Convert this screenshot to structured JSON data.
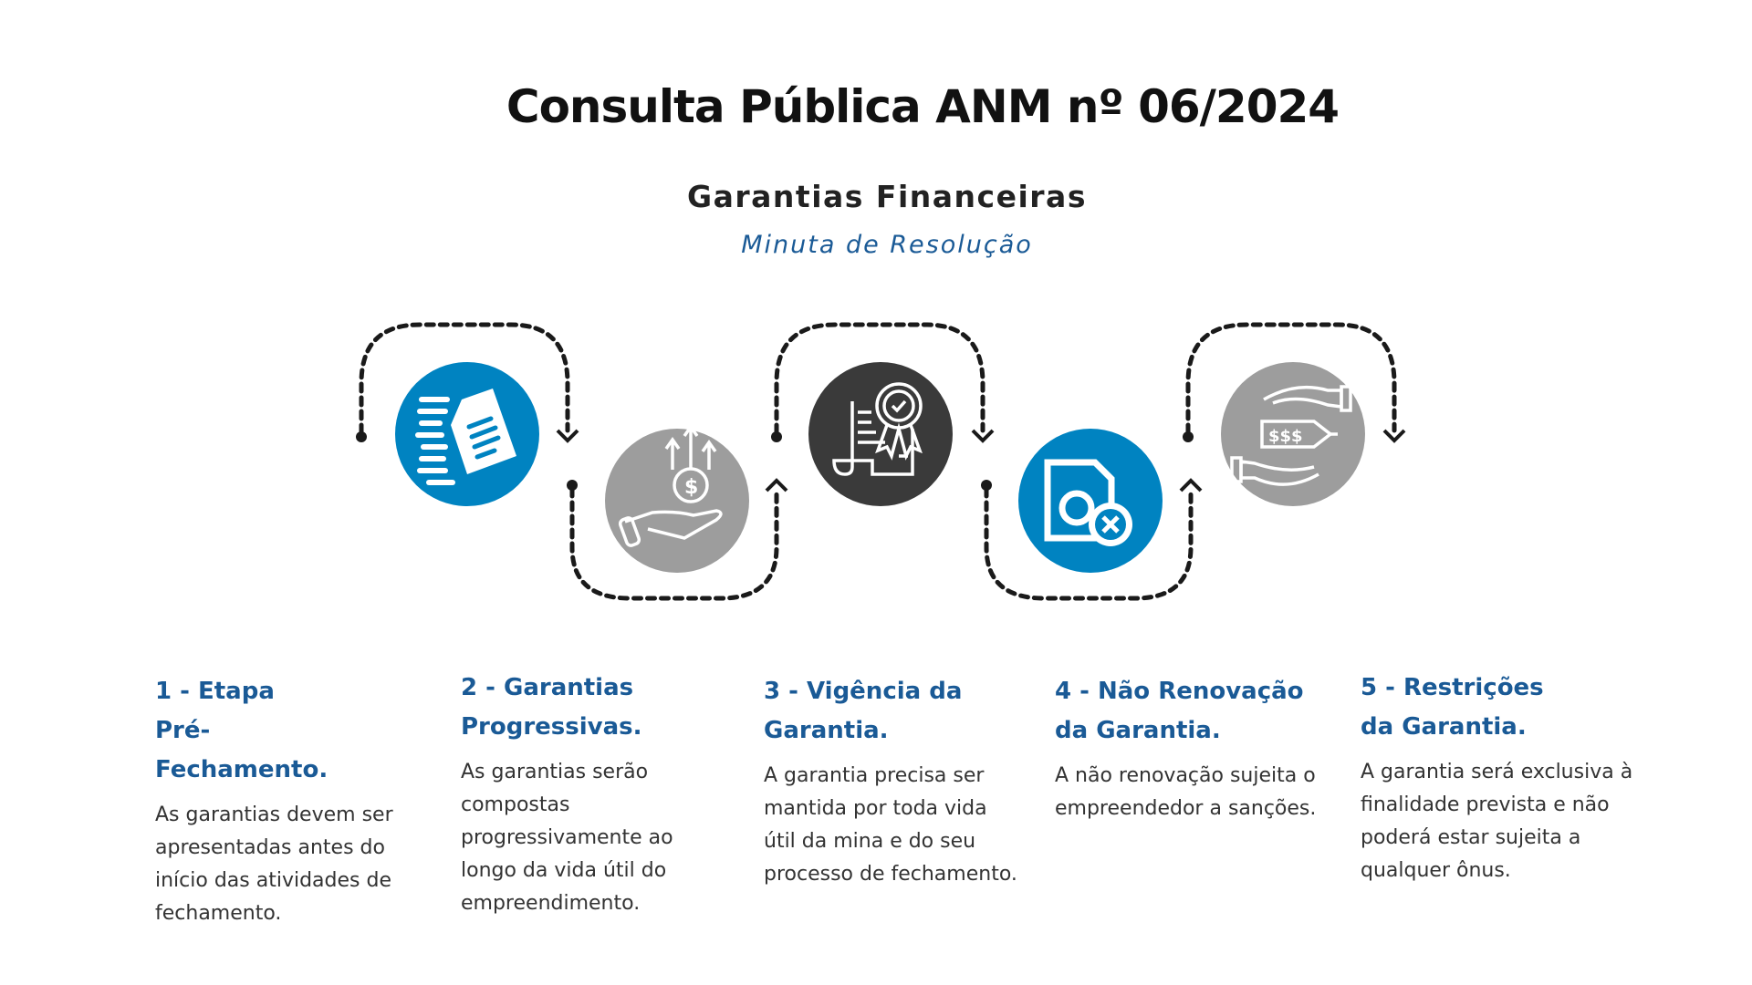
{
  "header": {
    "title": "Consulta Pública ANM nº 06/2024",
    "subtitle": "Garantias Financeiras",
    "caption": "Minuta de Resolução"
  },
  "colors": {
    "blue": "#0083c1",
    "gray": "#9d9d9d",
    "dark": "#3a3a3a",
    "heading": "#1a5a96"
  },
  "steps": [
    {
      "icon": "document-list-icon",
      "color": "blue",
      "heading": "1 - Etapa Pré-Fechamento.",
      "text": "As garantias devem ser apresentadas antes do início das atividades de fechamento."
    },
    {
      "icon": "hand-money-growth-icon",
      "color": "gray",
      "heading": "2 - Garantias Progressivas.",
      "text": "As garantias serão compostas progressivamente ao longo da vida útil do empreendimento."
    },
    {
      "icon": "certificate-badge-icon",
      "color": "dark",
      "heading": "3 - Vigência da Garantia.",
      "text": "A garantia precisa ser mantida por toda vida útil da mina e do seu processo de fechamento."
    },
    {
      "icon": "document-cancel-icon",
      "color": "blue",
      "heading": "4 - Não Renovação da Garantia.",
      "text": "A não renovação sujeita o empreendedor a sanções."
    },
    {
      "icon": "hands-price-tag-icon",
      "color": "gray",
      "heading": "5 - Restrições da Garantia.",
      "text": "A garantia será exclusiva à finalidade prevista e não poderá estar sujeita a qualquer ônus."
    }
  ]
}
